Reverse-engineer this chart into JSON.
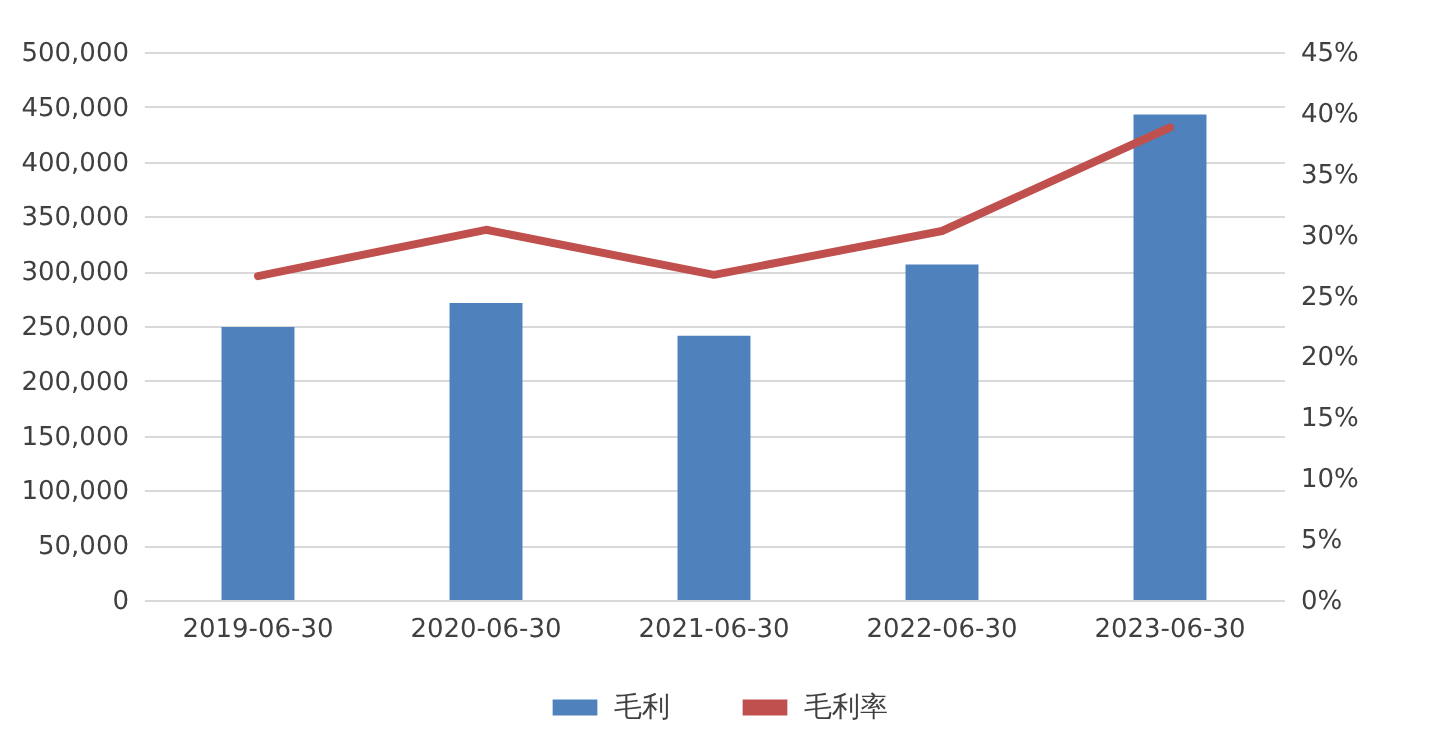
{
  "chart_data": {
    "type": "bar",
    "categories": [
      "2019-06-30",
      "2020-06-30",
      "2021-06-30",
      "2022-06-30",
      "2023-06-30"
    ],
    "series": [
      {
        "name": "毛利",
        "color": "#4f81bd",
        "values": [
          249000,
          271000,
          241000,
          306000,
          443000
        ]
      },
      {
        "name": "毛利率",
        "type": "line",
        "axis": "y2",
        "color": "#c0504d",
        "values": [
          26.6,
          30.4,
          26.7,
          30.3,
          38.8
        ]
      }
    ],
    "ylim": [
      0,
      500000
    ],
    "yticks": [
      0,
      {
        "value": 50000,
        "label": "50,000"
      },
      {
        "value": 100000,
        "label": "100,000"
      },
      {
        "value": 150000,
        "label": "150,000"
      },
      {
        "value": 200000,
        "label": "200,000"
      },
      {
        "value": 250000,
        "label": "250,000"
      },
      {
        "value": 300000,
        "label": "300,000"
      },
      {
        "value": 350000,
        "label": "350,000"
      },
      {
        "value": 400000,
        "label": "400,000"
      },
      {
        "value": 450000,
        "label": "450,000"
      },
      {
        "value": 500000,
        "label": "500,000"
      }
    ],
    "y2lim": [
      0,
      45
    ],
    "y2ticks": [
      {
        "value": 0,
        "label": "0%"
      },
      {
        "value": 5,
        "label": "5%"
      },
      {
        "value": 10,
        "label": "10%"
      },
      {
        "value": 15,
        "label": "15%"
      },
      {
        "value": 20,
        "label": "20%"
      },
      {
        "value": 25,
        "label": "25%"
      },
      {
        "value": 30,
        "label": "30%"
      },
      {
        "value": 35,
        "label": "35%"
      },
      {
        "value": 40,
        "label": "40%"
      },
      {
        "value": 45,
        "label": "45%"
      }
    ],
    "grid": "y",
    "legend": "bottom",
    "marker": "none",
    "line_style": "solid"
  }
}
